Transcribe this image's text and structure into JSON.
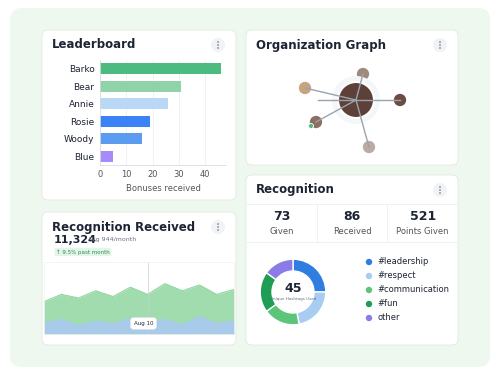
{
  "chart_data": [
    {
      "type": "bar",
      "title": "Leaderboard",
      "orientation": "horizontal",
      "categories": [
        "Barko",
        "Bear",
        "Annie",
        "Rosie",
        "Woody",
        "Blue"
      ],
      "values": [
        46,
        31,
        26,
        19,
        16,
        5
      ],
      "colors": [
        "#4cbb7f",
        "#8fd4a8",
        "#b8d8f5",
        "#3b82f6",
        "#5b9bf0",
        "#a78bfa"
      ],
      "xlabel": "Bonuses received",
      "xlim": [
        0,
        48
      ],
      "xticks": [
        0,
        10,
        20,
        30,
        40
      ],
      "grid": true
    },
    {
      "type": "graph",
      "title": "Organization Graph"
    },
    {
      "type": "area",
      "title": "Recognition Received",
      "headline": "11,324",
      "subtitle": "Avg 944/month",
      "badge": "↑ 9.5% past month",
      "annotation": "Aug 10",
      "categories": [
        null,
        null,
        null,
        null,
        null,
        null,
        null,
        null,
        null,
        null,
        null,
        null
      ],
      "series": [
        {
          "color": "#8fd6a0",
          "values": [
            45,
            55,
            50,
            60,
            52,
            65,
            55,
            70,
            60,
            68,
            55,
            62
          ]
        },
        {
          "color": "#a9c8f3",
          "values": [
            15,
            20,
            12,
            18,
            14,
            22,
            16,
            20,
            13,
            24,
            15,
            18
          ]
        }
      ],
      "ylim": [
        0,
        100
      ],
      "tick_labels": false
    },
    {
      "type": "donut",
      "title": "Recognition",
      "stats": [
        {
          "value": 73,
          "label": "Given"
        },
        {
          "value": 86,
          "label": "Received"
        },
        {
          "value": 521,
          "label": "Points Given"
        }
      ],
      "center_value": 45,
      "center_label": "Unique Hashtags Used",
      "categories": [
        "#leadership",
        "#respect",
        "#communication",
        "#fun",
        "other"
      ],
      "values": [
        25,
        22,
        18,
        20,
        15
      ],
      "colors": [
        "#2f7de1",
        "#a9cdf2",
        "#5cc57a",
        "#1f9d55",
        "#8b7be8"
      ]
    }
  ]
}
